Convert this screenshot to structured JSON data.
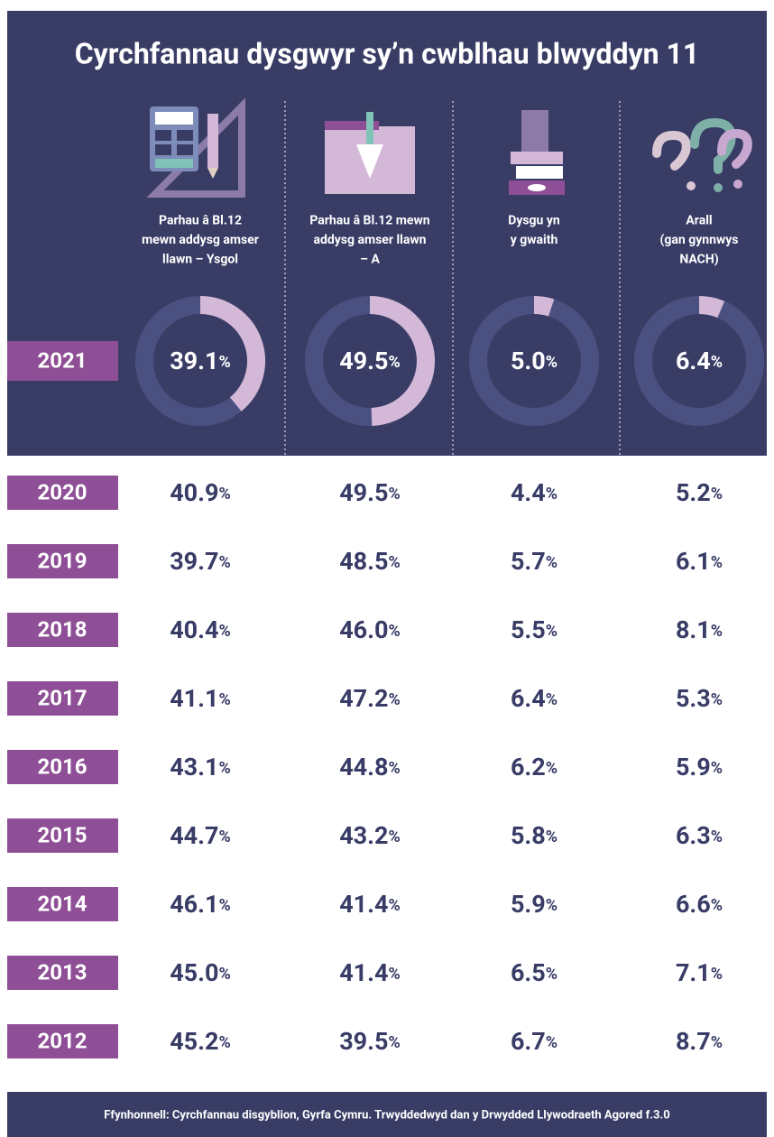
{
  "title": "Cyrchfannau dysgwyr sy’n cwblhau blwyddyn 11",
  "columns": [
    {
      "label": [
        "Parhau â Bl.12",
        "mewn addysg amser",
        "llawn – Ysgol"
      ]
    },
    {
      "label": [
        "Parhau â Bl.12 mewn",
        "addysg amser llawn",
        "– A"
      ]
    },
    {
      "label": [
        "Dysgu yn",
        "y gwaith"
      ]
    },
    {
      "label": [
        "Arall",
        "(gan gynnwys",
        "NACH)"
      ]
    }
  ],
  "unit": "%",
  "rows": [
    {
      "year": "2021",
      "values": [
        "39.1",
        "49.5",
        "5.0",
        "6.4"
      ]
    },
    {
      "year": "2020",
      "values": [
        "40.9",
        "49.5",
        "4.4",
        "5.2"
      ]
    },
    {
      "year": "2019",
      "values": [
        "39.7",
        "48.5",
        "5.7",
        "6.1"
      ]
    },
    {
      "year": "2018",
      "values": [
        "40.4",
        "46.0",
        "5.5",
        "8.1"
      ]
    },
    {
      "year": "2017",
      "values": [
        "41.1",
        "47.2",
        "6.4",
        "5.3"
      ]
    },
    {
      "year": "2016",
      "values": [
        "43.1",
        "44.8",
        "6.2",
        "5.9"
      ]
    },
    {
      "year": "2015",
      "values": [
        "44.7",
        "43.2",
        "5.8",
        "6.3"
      ]
    },
    {
      "year": "2014",
      "values": [
        "46.1",
        "41.4",
        "5.9",
        "6.6"
      ]
    },
    {
      "year": "2013",
      "values": [
        "45.0",
        "41.4",
        "6.5",
        "7.1"
      ]
    },
    {
      "year": "2012",
      "values": [
        "45.2",
        "39.5",
        "6.7",
        "8.7"
      ]
    }
  ],
  "source": "Ffynhonnell: Cyrchfannau disgyblion, Gyrfa Cymru. Trwyddedwyd dan y Drwydded Llywodraeth Agored f.3.0"
}
